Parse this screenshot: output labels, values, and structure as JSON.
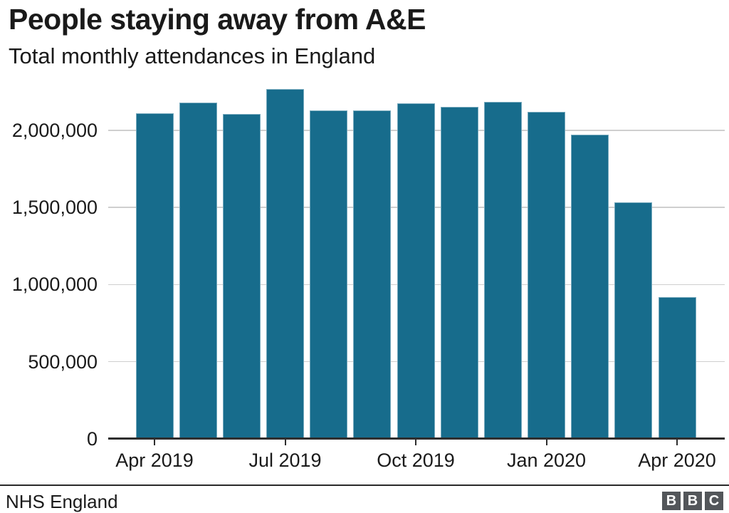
{
  "header": {
    "title": "People staying away from A&E",
    "subtitle": "Total monthly attendances in England"
  },
  "footer": {
    "source": "NHS England",
    "logo_letters": [
      "B",
      "B",
      "C"
    ]
  },
  "colors": {
    "bar": "#176C8C",
    "grid": "#CFCFCF",
    "axis": "#2E2E2E",
    "text": "#1A1A1A",
    "logo_gray": "#53565A"
  },
  "chart_data": {
    "type": "bar",
    "title": "People staying away from A&E",
    "subtitle": "Total monthly attendances in England",
    "source": "NHS England",
    "categories": [
      "Apr 2019",
      "May 2019",
      "Jun 2019",
      "Jul 2019",
      "Aug 2019",
      "Sep 2019",
      "Oct 2019",
      "Nov 2019",
      "Dec 2019",
      "Jan 2020",
      "Feb 2020",
      "Mar 2020",
      "Apr 2020"
    ],
    "values": [
      2110000,
      2178000,
      2106000,
      2268000,
      2130000,
      2128000,
      2175000,
      2150000,
      2185000,
      2118000,
      1970000,
      1535000,
      917000
    ],
    "x_tick_labels": [
      "Apr 2019",
      "Jul 2019",
      "Oct 2019",
      "Jan 2020",
      "Apr 2020"
    ],
    "x_tick_indices": [
      0,
      3,
      6,
      9,
      12
    ],
    "y_ticks": [
      0,
      500000,
      1000000,
      1500000,
      2000000
    ],
    "y_tick_labels": [
      "0",
      "500,000",
      "1,000,000",
      "1,500,000",
      "2,000,000"
    ],
    "ylim": [
      0,
      2300000
    ],
    "xlabel": "",
    "ylabel": "",
    "grid": "horizontal",
    "legend": "none"
  }
}
